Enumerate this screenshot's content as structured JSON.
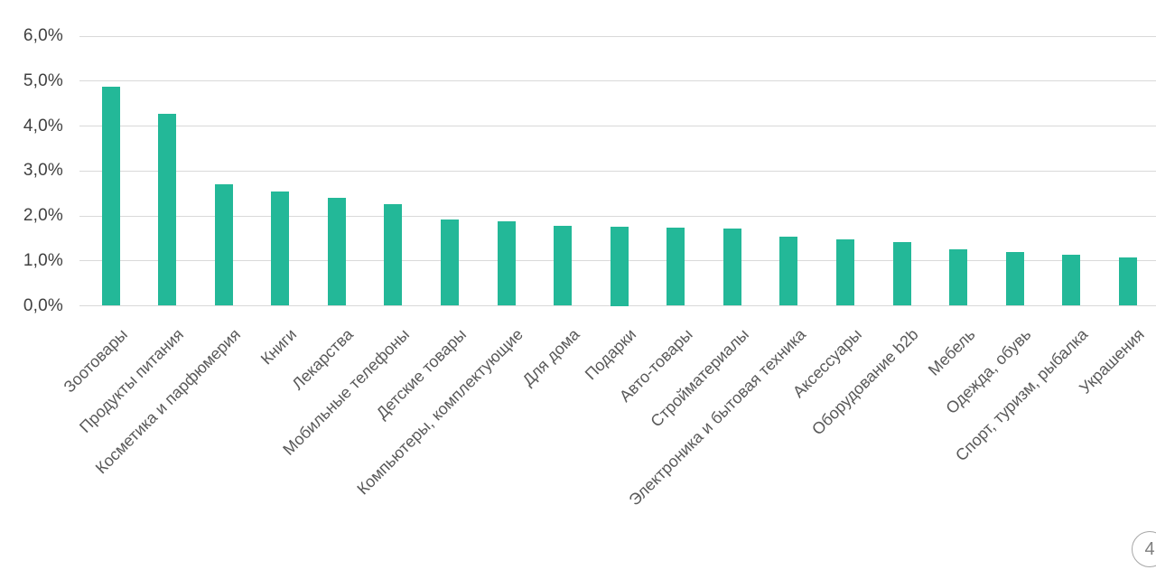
{
  "chart_data": {
    "type": "bar",
    "title": "",
    "xlabel": "",
    "ylabel": "",
    "categories": [
      "Зоотовары",
      "Продукты питания",
      "Косметика и парфюмерия",
      "Книги",
      "Лекарства",
      "Мобильные телефоны",
      "Детские товары",
      "Компьютеры, комплектующие",
      "Для дома",
      "Подарки",
      "Авто-товары",
      "Стройматериалы",
      "Электроника и бытовая техника",
      "Аксессуары",
      "Оборудование b2b",
      "Мебель",
      "Одежда, обувь",
      "Спорт, туризм, рыбалка",
      "Украшения"
    ],
    "values": [
      4.88,
      4.28,
      2.71,
      2.54,
      2.4,
      2.27,
      1.92,
      1.88,
      1.78,
      1.75,
      1.73,
      1.71,
      1.54,
      1.48,
      1.42,
      1.26,
      1.2,
      1.14,
      1.08
    ],
    "value_unit": "%",
    "ylim": [
      0,
      6
    ],
    "grid": true,
    "legend": "none",
    "yticks": [
      {
        "value": 0,
        "label": "0,0%"
      },
      {
        "value": 1,
        "label": "1,0%"
      },
      {
        "value": 2,
        "label": "2,0%"
      },
      {
        "value": 3,
        "label": "3,0%"
      },
      {
        "value": 4,
        "label": "4,0%"
      },
      {
        "value": 5,
        "label": "5,0%"
      },
      {
        "value": 6,
        "label": "6,0%"
      }
    ],
    "colors": {
      "bar": "#23b898",
      "gridline": "#d9d9d9",
      "ytick_text": "#404040",
      "category_text": "#595959"
    }
  },
  "page_badge": {
    "number": "4"
  }
}
